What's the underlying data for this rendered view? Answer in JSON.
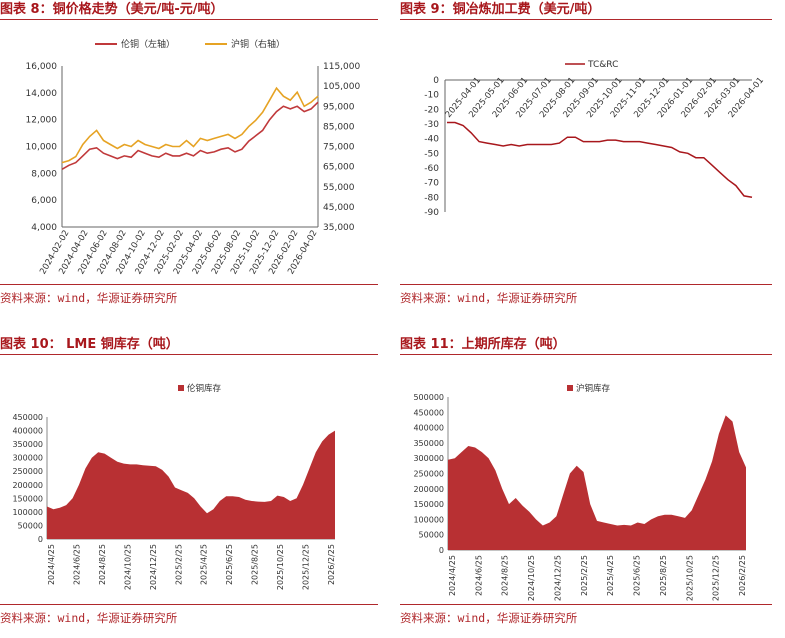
{
  "colors": {
    "primary_red": "#a8171c",
    "rule_red": "#b0282c",
    "series_red": "#c0393b",
    "series_gold": "#e6a324",
    "area_red": "#b83033"
  },
  "panels": [
    {
      "title": "图表 8：铜价格走势（美元/吨-元/吨）",
      "source": "资料来源：wind，华源证券研究所"
    },
    {
      "title": "图表 9：铜冶炼加工费（美元/吨）",
      "source": "资料来源：wind，华源证券研究所"
    },
    {
      "title": "图表 10： LME 铜库存（吨）",
      "source": "资料来源：wind，华源证券研究所"
    },
    {
      "title": "图表 11：上期所库存（吨）",
      "source": "资料来源：wind，华源证券研究所"
    }
  ],
  "chart_data": [
    {
      "type": "line",
      "title": "",
      "legend_position": "top-center",
      "x_ticks": [
        "2024-02-02",
        "2024-04-02",
        "2024-06-02",
        "2024-08-02",
        "2024-10-02",
        "2024-12-02",
        "2025-02-02",
        "2025-04-02",
        "2025-06-02",
        "2025-08-02",
        "2025-10-02",
        "2025-12-02",
        "2026-02-02",
        "2026-04-02"
      ],
      "ylim_left": [
        4000,
        16000
      ],
      "yticks_left": [
        "4,000",
        "6,000",
        "8,000",
        "10,000",
        "12,000",
        "14,000",
        "16,000"
      ],
      "ylim_right": [
        35000,
        115000
      ],
      "yticks_right": [
        "35,000",
        "45,000",
        "55,000",
        "65,000",
        "75,000",
        "85,000",
        "95,000",
        "105,000",
        "115,000"
      ],
      "series": [
        {
          "name": "伦铜（左轴）",
          "axis": "left",
          "color": "#c0393b",
          "values": [
            8300,
            8600,
            8800,
            9300,
            9800,
            9900,
            9500,
            9300,
            9100,
            9300,
            9200,
            9700,
            9500,
            9300,
            9200,
            9500,
            9300,
            9300,
            9500,
            9300,
            9700,
            9500,
            9600,
            9800,
            9900,
            9600,
            9800,
            10400,
            10800,
            11200,
            12000,
            12600,
            13000,
            12800,
            13000,
            12600,
            12800,
            13300
          ]
        },
        {
          "name": "沪铜（右轴）",
          "axis": "right",
          "color": "#e6a324",
          "values": [
            67000,
            68000,
            70000,
            76000,
            80000,
            83000,
            78000,
            76000,
            74000,
            76000,
            75000,
            78000,
            76000,
            75000,
            74000,
            76000,
            75000,
            75000,
            78000,
            75000,
            79000,
            78000,
            79000,
            80000,
            81000,
            79000,
            81000,
            85000,
            88000,
            92000,
            98000,
            104000,
            100000,
            98000,
            102000,
            95000,
            97000,
            100000
          ]
        }
      ]
    },
    {
      "type": "line",
      "title": "",
      "legend_position": "top-center",
      "x_ticks": [
        "2025-04-01",
        "2025-05-01",
        "2025-06-01",
        "2025-07-01",
        "2025-08-01",
        "2025-09-01",
        "2025-10-01",
        "2025-11-01",
        "2025-12-01",
        "2026-01-01",
        "2026-02-01",
        "2026-03-01",
        "2026-04-01"
      ],
      "ylim": [
        -90,
        0
      ],
      "yticks": [
        "0",
        "-10",
        "-20",
        "-30",
        "-40",
        "-50",
        "-60",
        "-70",
        "-80",
        "-90"
      ],
      "series": [
        {
          "name": "TC&RC",
          "color": "#a8171c",
          "values": [
            -29,
            -29,
            -31,
            -36,
            -42,
            -43,
            -44,
            -45,
            -44,
            -45,
            -44,
            -44,
            -44,
            -44,
            -43,
            -39,
            -39,
            -42,
            -42,
            -42,
            -41,
            -41,
            -42,
            -42,
            -42,
            -43,
            -44,
            -45,
            -46,
            -49,
            -50,
            -53,
            -53,
            -58,
            -63,
            -68,
            -72,
            -79,
            -80
          ]
        }
      ]
    },
    {
      "type": "area",
      "title": "",
      "legend_position": "top-center",
      "x_ticks": [
        "2024/4/25",
        "2024/6/25",
        "2024/8/25",
        "2024/10/25",
        "2024/12/25",
        "2025/2/25",
        "2025/4/25",
        "2025/6/25",
        "2025/8/25",
        "2025/10/25",
        "2025/12/25",
        "2026/2/25"
      ],
      "ylim": [
        0,
        450000
      ],
      "yticks": [
        "0",
        "50000",
        "100000",
        "150000",
        "200000",
        "250000",
        "300000",
        "350000",
        "400000",
        "450000"
      ],
      "series": [
        {
          "name": "伦铜库存",
          "color": "#b83033",
          "values": [
            120000,
            110000,
            115000,
            125000,
            150000,
            200000,
            260000,
            300000,
            320000,
            315000,
            300000,
            285000,
            278000,
            275000,
            275000,
            272000,
            270000,
            268000,
            255000,
            230000,
            190000,
            180000,
            170000,
            150000,
            120000,
            95000,
            110000,
            140000,
            158000,
            158000,
            155000,
            145000,
            140000,
            138000,
            137000,
            140000,
            160000,
            155000,
            140000,
            150000,
            200000,
            260000,
            320000,
            360000,
            385000,
            400000
          ]
        }
      ]
    },
    {
      "type": "area",
      "title": "",
      "legend_position": "top-center",
      "x_ticks": [
        "2024/4/25",
        "2024/6/25",
        "2024/8/25",
        "2024/10/25",
        "2024/12/25",
        "2025/2/25",
        "2025/4/25",
        "2025/6/25",
        "2025/8/25",
        "2025/10/25",
        "2025/12/25",
        "2026/2/25"
      ],
      "ylim": [
        0,
        500000
      ],
      "yticks": [
        "0",
        "50000",
        "100000",
        "150000",
        "200000",
        "250000",
        "300000",
        "350000",
        "400000",
        "450000",
        "500000"
      ],
      "series": [
        {
          "name": "沪铜库存",
          "color": "#b83033",
          "values": [
            295000,
            300000,
            320000,
            340000,
            335000,
            320000,
            300000,
            260000,
            200000,
            150000,
            170000,
            145000,
            125000,
            100000,
            80000,
            90000,
            110000,
            180000,
            250000,
            275000,
            255000,
            150000,
            95000,
            90000,
            85000,
            80000,
            82000,
            80000,
            90000,
            85000,
            100000,
            110000,
            115000,
            115000,
            110000,
            105000,
            130000,
            180000,
            230000,
            290000,
            380000,
            440000,
            420000,
            320000,
            270000
          ]
        }
      ]
    }
  ]
}
